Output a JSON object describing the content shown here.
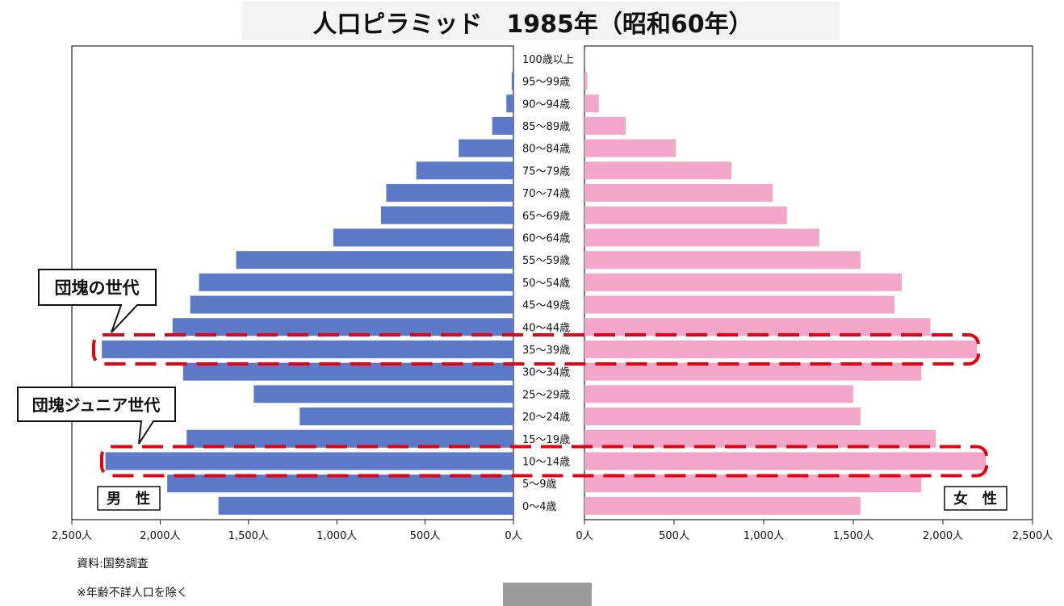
{
  "chart_data": {
    "type": "bar",
    "orientation": "horizontal-pyramid",
    "title": "人口ピラミッド　1985年（昭和60年）",
    "categories": [
      "100歳以上",
      "95〜99歳",
      "90〜94歳",
      "85〜89歳",
      "80〜84歳",
      "75〜79歳",
      "70〜74歳",
      "65〜69歳",
      "60〜64歳",
      "55〜59歳",
      "50〜54歳",
      "45〜49歳",
      "40〜44歳",
      "35〜39歳",
      "30〜34歳",
      "25〜29歳",
      "20〜24歳",
      "15〜19歳",
      "10〜14歳",
      "5〜9歳",
      "0〜4歳"
    ],
    "series": [
      {
        "name": "男　性",
        "color": "#5b79c6",
        "side": "left",
        "values": [
          1,
          10,
          40,
          120,
          310,
          550,
          720,
          750,
          1020,
          1570,
          1780,
          1830,
          1930,
          2330,
          1870,
          1470,
          1210,
          1850,
          2310,
          1960,
          1670
        ]
      },
      {
        "name": "女　性",
        "color": "#f2a7c8",
        "side": "right",
        "values": [
          1,
          15,
          80,
          230,
          510,
          820,
          1050,
          1130,
          1310,
          1540,
          1770,
          1730,
          1930,
          2190,
          1880,
          1500,
          1540,
          1960,
          2240,
          1880,
          1540
        ]
      }
    ],
    "xlim": [
      0,
      2500
    ],
    "ticks": [
      0,
      500,
      1000,
      1500,
      2000,
      2500
    ],
    "tick_labels": [
      "0人",
      "500人",
      "1,000人",
      "1,500人",
      "2,000人",
      "2,500人"
    ],
    "highlight_color": "#e60012",
    "annotations": [
      {
        "label": "団塊の世代",
        "target_category": "35〜39歳"
      },
      {
        "label": "団塊ジュニア世代",
        "target_category": "10〜14歳"
      }
    ],
    "grid": false
  },
  "footer": {
    "source": "資料:国勢調査",
    "note": "※年齢不詳人口を除く"
  }
}
